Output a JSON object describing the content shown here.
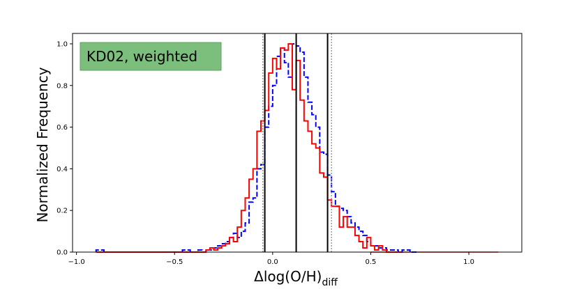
{
  "chart_data": {
    "type": "histogram",
    "annotation": "KD02, weighted",
    "annotation_box_color": "#7cbf7c",
    "xlabel_main": "Δlog(O/H)",
    "xlabel_sub": "diff",
    "ylabel": "Normalized Frequency",
    "xlim": [
      -1.02,
      1.27
    ],
    "ylim": [
      0.0,
      1.05
    ],
    "xticks": [
      -1.0,
      -0.5,
      0.0,
      0.5,
      1.0
    ],
    "xtick_labels": [
      "−1.0",
      "−0.5",
      "0.0",
      "0.5",
      "1.0"
    ],
    "yticks": [
      0.0,
      0.2,
      0.4,
      0.6,
      0.8,
      1.0
    ],
    "ytick_labels": [
      "0.0",
      "0.2",
      "0.4",
      "0.6",
      "0.8",
      "1.0"
    ],
    "series": [
      {
        "color": "#0000ff",
        "style": "dashed",
        "start": -0.9,
        "bin_width": 0.02,
        "values": [
          0.01,
          0.01,
          0.0,
          0.0,
          0.0,
          0.0,
          0.0,
          0.0,
          0.0,
          0.0,
          0.0,
          0.0,
          0.0,
          0.0,
          0.0,
          0.0,
          0.0,
          0.0,
          0.0,
          0.0,
          0.0,
          0.0,
          0.01,
          0.01,
          0.0,
          0.0,
          0.01,
          0.0,
          0.01,
          0.01,
          0.02,
          0.03,
          0.04,
          0.05,
          0.07,
          0.09,
          0.07,
          0.1,
          0.14,
          0.24,
          0.26,
          0.4,
          0.42,
          0.6,
          0.7,
          0.8,
          0.94,
          0.98,
          0.91,
          0.84,
          1.0,
          0.99,
          0.96,
          0.84,
          0.72,
          0.66,
          0.6,
          0.48,
          0.47,
          0.37,
          0.29,
          0.22,
          0.21,
          0.2,
          0.17,
          0.14,
          0.12,
          0.1,
          0.08,
          0.05,
          0.03,
          0.03,
          0.02,
          0.02,
          0.01,
          0.01,
          0.01,
          0.0,
          0.01,
          0.01,
          0.0,
          0.0
        ]
      },
      {
        "color": "#ff0000",
        "style": "solid",
        "start": -0.9,
        "bin_width": 0.02,
        "values": [
          0.0,
          0.0,
          0.0,
          0.0,
          0.0,
          0.0,
          0.0,
          0.0,
          0.0,
          0.0,
          0.0,
          0.0,
          0.0,
          0.0,
          0.0,
          0.0,
          0.0,
          0.0,
          0.0,
          0.0,
          0.0,
          0.0,
          0.0,
          0.0,
          0.0,
          0.0,
          0.0,
          0.0,
          0.01,
          0.02,
          0.01,
          0.02,
          0.03,
          0.04,
          0.07,
          0.05,
          0.12,
          0.2,
          0.26,
          0.35,
          0.4,
          0.58,
          0.63,
          0.68,
          0.86,
          0.93,
          0.88,
          0.98,
          0.97,
          1.0,
          0.78,
          0.92,
          0.73,
          0.63,
          0.58,
          0.52,
          0.5,
          0.38,
          0.36,
          0.25,
          0.22,
          0.22,
          0.12,
          0.17,
          0.12,
          0.12,
          0.08,
          0.05,
          0.02,
          0.07,
          0.03,
          0.01,
          0.03,
          0.01,
          0.0,
          0.0,
          0.0,
          0.0
        ]
      }
    ],
    "vlines_solid": [
      -0.04,
      0.12,
      0.28
    ],
    "vlines_dotted": [
      -0.05,
      0.3
    ],
    "tail_line": {
      "color": "#ff0000",
      "x": [
        0.5,
        1.15
      ]
    }
  }
}
